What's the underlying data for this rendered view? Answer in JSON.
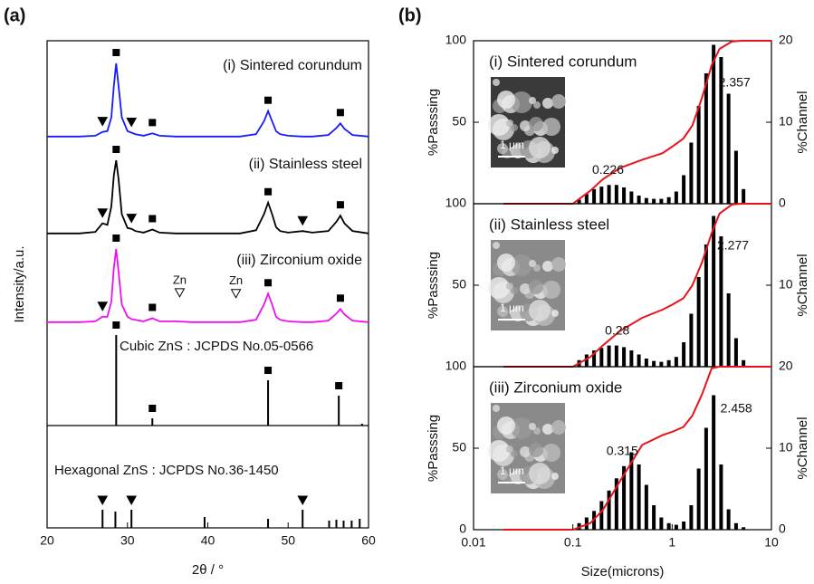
{
  "chart_data": [
    {
      "type": "line",
      "label": "(a)",
      "xlabel": "2θ / °",
      "ylabel": "Intensity/a.u.",
      "xlim": [
        20,
        60
      ],
      "xticks": [
        20,
        30,
        40,
        50,
        60
      ],
      "ylim": [
        0,
        100
      ],
      "x": [
        20,
        22,
        24,
        26,
        26.9,
        27.5,
        28.0,
        28.3,
        28.6,
        28.9,
        29.3,
        30,
        30.5,
        31,
        32,
        33.1,
        34,
        36,
        38,
        40,
        42,
        44,
        46,
        47,
        47.5,
        48,
        48.5,
        49,
        50,
        51.8,
        53,
        55,
        56,
        56.5,
        57,
        58,
        60
      ],
      "series": [
        {
          "name": "(i) Sintered corundum",
          "color": "#1a1aff",
          "values": [
            5,
            5,
            5,
            6,
            11,
            12,
            30,
            70,
            100,
            70,
            30,
            12,
            10,
            8,
            6,
            9,
            6,
            5,
            5,
            5,
            5,
            5,
            8,
            25,
            38,
            25,
            12,
            8,
            6,
            5,
            5,
            7,
            16,
            22,
            15,
            7,
            5
          ],
          "markers": [
            {
              "x": 26.9,
              "shape": "triangle"
            },
            {
              "x": 28.6,
              "shape": "square"
            },
            {
              "x": 30.5,
              "shape": "triangle"
            },
            {
              "x": 33.1,
              "shape": "square"
            },
            {
              "x": 47.5,
              "shape": "square"
            },
            {
              "x": 56.5,
              "shape": "square"
            }
          ]
        },
        {
          "name": "(ii) Stainless steel",
          "color": "#000000",
          "values": [
            5,
            5,
            5,
            7,
            18,
            16,
            40,
            80,
            100,
            75,
            30,
            12,
            11,
            8,
            6,
            10,
            6,
            5,
            5,
            5,
            5,
            5,
            9,
            30,
            45,
            30,
            13,
            8,
            6,
            8,
            6,
            8,
            20,
            28,
            18,
            8,
            5
          ],
          "markers": [
            {
              "x": 26.9,
              "shape": "triangle"
            },
            {
              "x": 28.6,
              "shape": "square"
            },
            {
              "x": 30.5,
              "shape": "triangle"
            },
            {
              "x": 33.1,
              "shape": "square"
            },
            {
              "x": 47.5,
              "shape": "square"
            },
            {
              "x": 51.8,
              "shape": "triangle"
            },
            {
              "x": 56.5,
              "shape": "square"
            }
          ]
        },
        {
          "name": "(iii) Zirconium oxide",
          "color": "#ee11ee",
          "values": [
            5,
            5,
            5,
            6,
            12,
            12,
            32,
            75,
            100,
            70,
            28,
            12,
            9,
            8,
            6,
            10,
            6,
            6,
            5,
            5,
            5,
            5,
            8,
            28,
            42,
            28,
            12,
            8,
            6,
            5,
            5,
            7,
            16,
            22,
            15,
            7,
            5
          ],
          "markers": [
            {
              "x": 26.9,
              "shape": "triangle"
            },
            {
              "x": 28.6,
              "shape": "square"
            },
            {
              "x": 33.1,
              "shape": "square"
            },
            {
              "x": 36.5,
              "shape": "open-triangle",
              "label": "Zn"
            },
            {
              "x": 43.5,
              "shape": "open-triangle",
              "label": "Zn"
            },
            {
              "x": 47.5,
              "shape": "square"
            },
            {
              "x": 56.5,
              "shape": "square"
            }
          ]
        }
      ],
      "references": [
        {
          "name": "Cubic ZnS : JCPDS No.05-0566",
          "color": "#000000",
          "positions": [
            28.6,
            33.1,
            47.5,
            56.3,
            59.2
          ],
          "values": [
            100,
            8,
            50,
            33,
            2
          ],
          "markers": [
            {
              "x": 28.6,
              "shape": "square"
            },
            {
              "x": 33.1,
              "shape": "square"
            },
            {
              "x": 47.5,
              "shape": "square"
            },
            {
              "x": 56.3,
              "shape": "square"
            }
          ]
        },
        {
          "name": "Hexagonal ZnS : JCPDS No.36-1450",
          "color": "#000000",
          "positions": [
            26.9,
            28.5,
            30.5,
            39.6,
            47.5,
            51.8,
            55.1,
            56.0,
            56.9,
            57.9,
            58.9
          ],
          "values": [
            20,
            18,
            20,
            12,
            10,
            20,
            8,
            9,
            8,
            8,
            10
          ],
          "markers": [
            {
              "x": 26.9,
              "shape": "triangle"
            },
            {
              "x": 30.5,
              "shape": "triangle"
            },
            {
              "x": 51.8,
              "shape": "triangle"
            }
          ]
        }
      ]
    },
    {
      "type": "combo",
      "label": "(b)",
      "xlabel": "Size(microns)",
      "ylabel": "%Passsing",
      "y2label": "%Channel",
      "xlim": [
        0.01,
        10
      ],
      "xticks": [
        0.01,
        0.1,
        1,
        10
      ],
      "log_x": true,
      "ylim": [
        0,
        100
      ],
      "y2lim": [
        0,
        20
      ],
      "passing_color": "#e8141c",
      "bar_color": "#000000",
      "channel_sizes": [
        0.1156,
        0.1375,
        0.1635,
        0.1944,
        0.2312,
        0.275,
        0.327,
        0.389,
        0.4625,
        0.55,
        0.654,
        0.778,
        0.925,
        1.1,
        1.308,
        1.556,
        1.85,
        2.2,
        2.616,
        3.111,
        3.7,
        4.4,
        5.232
      ],
      "curve_x": [
        0.02,
        0.05,
        0.1,
        0.15,
        0.2,
        0.3,
        0.5,
        0.8,
        1.0,
        1.3,
        1.6,
        2.0,
        2.5,
        3.0,
        4.0,
        5.0,
        7.0,
        10
      ],
      "panels": [
        {
          "name": "(i) Sintered corundum",
          "scale_bar": "1 μm",
          "yticks": [
            50,
            100
          ],
          "y2ticks": [
            0,
            10,
            20
          ],
          "passing": [
            0,
            0,
            0,
            8,
            15,
            22,
            27,
            31,
            35,
            40,
            48,
            65,
            85,
            95,
            99.5,
            100,
            100,
            100
          ],
          "channel": [
            0.5,
            1.2,
            1.8,
            2.1,
            2.3,
            2.3,
            2.0,
            1.5,
            1.0,
            0.7,
            0.6,
            0.6,
            0.8,
            1.5,
            3.5,
            7.5,
            12,
            16,
            19.5,
            18,
            13.5,
            6.5,
            1.8
          ],
          "mode_sizes": [
            0.226,
            2.357
          ]
        },
        {
          "name": "(ii) Stainless steel",
          "scale_bar": "1 μm",
          "yticks": [
            50,
            100
          ],
          "y2ticks": [
            10
          ],
          "passing": [
            0,
            0,
            0,
            6,
            13,
            22,
            30,
            35,
            38,
            42,
            50,
            64,
            82,
            94,
            99.5,
            100,
            100,
            100
          ],
          "channel": [
            0.8,
            1.5,
            2.0,
            2.3,
            2.6,
            2.6,
            2.4,
            2.0,
            1.5,
            1.0,
            0.7,
            0.6,
            0.8,
            1.2,
            3.0,
            6.5,
            11,
            15,
            18.5,
            16,
            9,
            3.5,
            0.8
          ],
          "mode_sizes": [
            0.28,
            2.277
          ]
        },
        {
          "name": "(iii) Zirconium oxide",
          "scale_bar": "1 μm",
          "yticks": [
            0,
            50,
            100
          ],
          "y2ticks": [
            0,
            10,
            20
          ],
          "passing": [
            0,
            0,
            0,
            4,
            12,
            30,
            52,
            58,
            60,
            63,
            70,
            83,
            99,
            100,
            100,
            100,
            100,
            100
          ],
          "channel": [
            0.8,
            1.5,
            2.3,
            3.5,
            4.8,
            6.3,
            7.8,
            9.5,
            8.0,
            5.5,
            3.0,
            1.5,
            0.8,
            0.6,
            1.0,
            3.0,
            7.5,
            12.5,
            16.5,
            8,
            2.5,
            0.8,
            0.3
          ],
          "mode_sizes": [
            0.315,
            2.458
          ]
        }
      ]
    }
  ]
}
